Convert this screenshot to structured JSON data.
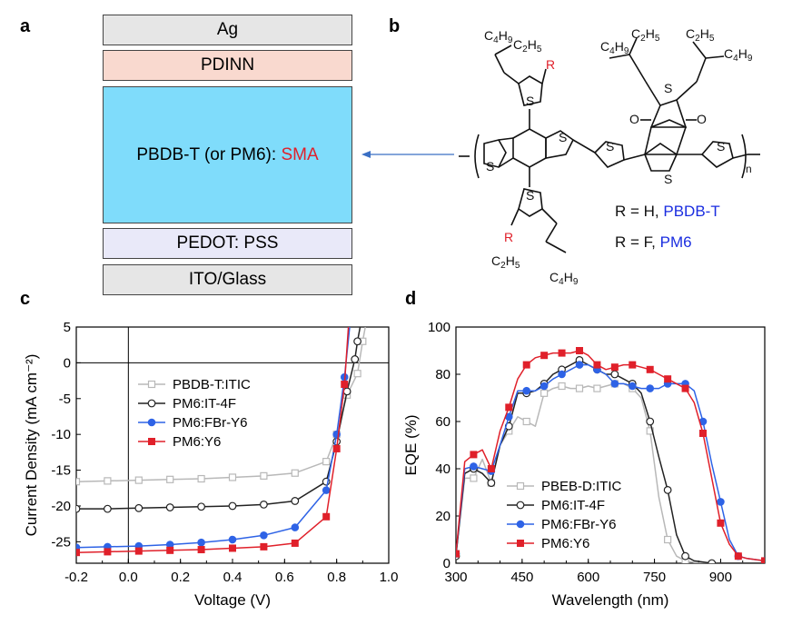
{
  "panels": {
    "a": "a",
    "b": "b",
    "c": "c",
    "d": "d"
  },
  "stack": {
    "layers": [
      {
        "label": "Ag",
        "color": "#e6e6e6"
      },
      {
        "label": "PDINN",
        "color": "#f9d9cf"
      },
      {
        "label_main": "PBDB-T (or PM6): ",
        "label_accent": "SMA",
        "color": "#7fdcfb",
        "accent_color": "#e0202a"
      },
      {
        "label": "PEDOT: PSS",
        "color": "#e9e9f9"
      },
      {
        "label": "ITO/Glass",
        "color": "#e6e6e6"
      }
    ]
  },
  "structure": {
    "substituents": {
      "c4h9": [
        "C",
        "4",
        "H",
        "9"
      ],
      "c2h5": [
        "C",
        "2",
        "H",
        "5"
      ]
    },
    "atoms": {
      "S": "S",
      "O": "O",
      "R": "R",
      "n": "n"
    },
    "legend": [
      {
        "prefix": "R = H, ",
        "polymer": "PBDB-T"
      },
      {
        "prefix": "R = F, ",
        "polymer": "PM6"
      }
    ],
    "r_color": "#e0202a",
    "polymer_color": "#1a2de0"
  },
  "chart_data": [
    {
      "panel": "c",
      "type": "line",
      "xlabel": "Voltage (V)",
      "ylabel": "Current Density (mA cm⁻²)",
      "xlim": [
        -0.2,
        1.0
      ],
      "ylim": [
        -28,
        5
      ],
      "xticks": [
        "-0.2",
        "0.0",
        "0.2",
        "0.4",
        "0.6",
        "0.8",
        "1.0"
      ],
      "yticks": [
        "5",
        "0",
        "-5",
        "-10",
        "-15",
        "-20",
        "-25"
      ],
      "legend_position": "center-left",
      "series": [
        {
          "name": "PBDB-T:ITIC",
          "color": "#b8b8b8",
          "marker": "open-square",
          "points": [
            [
              -0.2,
              -16.6
            ],
            [
              -0.08,
              -16.5
            ],
            [
              0.04,
              -16.4
            ],
            [
              0.16,
              -16.3
            ],
            [
              0.28,
              -16.2
            ],
            [
              0.4,
              -16.0
            ],
            [
              0.52,
              -15.8
            ],
            [
              0.64,
              -15.4
            ],
            [
              0.76,
              -13.8
            ],
            [
              0.8,
              -10
            ],
            [
              0.84,
              -4.5
            ],
            [
              0.88,
              -1.5
            ],
            [
              0.9,
              3
            ],
            [
              0.91,
              5
            ]
          ]
        },
        {
          "name": "PM6:IT-4F",
          "color": "#222222",
          "marker": "open-circle",
          "points": [
            [
              -0.2,
              -20.4
            ],
            [
              -0.08,
              -20.4
            ],
            [
              0.04,
              -20.3
            ],
            [
              0.16,
              -20.2
            ],
            [
              0.28,
              -20.1
            ],
            [
              0.4,
              -20.0
            ],
            [
              0.52,
              -19.8
            ],
            [
              0.64,
              -19.3
            ],
            [
              0.76,
              -16.6
            ],
            [
              0.8,
              -11
            ],
            [
              0.84,
              -4
            ],
            [
              0.87,
              0.5
            ],
            [
              0.88,
              3
            ],
            [
              0.89,
              5
            ]
          ]
        },
        {
          "name": "PM6:FBr-Y6",
          "color": "#2e63e6",
          "marker": "filled-circle",
          "points": [
            [
              -0.2,
              -25.8
            ],
            [
              -0.08,
              -25.7
            ],
            [
              0.04,
              -25.6
            ],
            [
              0.16,
              -25.4
            ],
            [
              0.28,
              -25.1
            ],
            [
              0.4,
              -24.7
            ],
            [
              0.52,
              -24.1
            ],
            [
              0.64,
              -23.0
            ],
            [
              0.76,
              -17.8
            ],
            [
              0.8,
              -10
            ],
            [
              0.83,
              -2
            ],
            [
              0.85,
              5
            ]
          ]
        },
        {
          "name": "PM6:Y6",
          "color": "#e0202a",
          "marker": "filled-square",
          "points": [
            [
              -0.2,
              -26.5
            ],
            [
              -0.08,
              -26.4
            ],
            [
              0.04,
              -26.3
            ],
            [
              0.16,
              -26.2
            ],
            [
              0.28,
              -26.1
            ],
            [
              0.4,
              -25.9
            ],
            [
              0.52,
              -25.7
            ],
            [
              0.64,
              -25.2
            ],
            [
              0.76,
              -21.5
            ],
            [
              0.8,
              -12
            ],
            [
              0.83,
              -3
            ],
            [
              0.845,
              5
            ]
          ]
        }
      ]
    },
    {
      "panel": "d",
      "type": "line",
      "xlabel": "Wavelength (nm)",
      "ylabel": "EQE (%)",
      "xlim": [
        300,
        1000
      ],
      "ylim": [
        0,
        100
      ],
      "xticks": [
        "300",
        "450",
        "600",
        "750",
        "900"
      ],
      "yticks": [
        "0",
        "20",
        "40",
        "60",
        "80",
        "100"
      ],
      "legend_position": "bottom-left",
      "series": [
        {
          "name": "PBEB-D:ITIC",
          "color": "#b8b8b8",
          "marker": "open-square",
          "points": [
            [
              300,
              4
            ],
            [
              320,
              36
            ],
            [
              340,
              36
            ],
            [
              360,
              44
            ],
            [
              380,
              34
            ],
            [
              400,
              50
            ],
            [
              420,
              56
            ],
            [
              440,
              62
            ],
            [
              460,
              60
            ],
            [
              480,
              58
            ],
            [
              500,
              72
            ],
            [
              520,
              74
            ],
            [
              540,
              75
            ],
            [
              560,
              74
            ],
            [
              580,
              74
            ],
            [
              600,
              75
            ],
            [
              620,
              74
            ],
            [
              640,
              75
            ],
            [
              660,
              76
            ],
            [
              680,
              76
            ],
            [
              700,
              74
            ],
            [
              720,
              70
            ],
            [
              740,
              56
            ],
            [
              760,
              28
            ],
            [
              780,
              10
            ],
            [
              800,
              3
            ],
            [
              820,
              1
            ],
            [
              850,
              0
            ],
            [
              1000,
              0
            ]
          ]
        },
        {
          "name": "PM6:IT-4F",
          "color": "#222222",
          "marker": "open-circle",
          "points": [
            [
              300,
              3
            ],
            [
              320,
              38
            ],
            [
              340,
              40
            ],
            [
              360,
              38
            ],
            [
              380,
              34
            ],
            [
              400,
              50
            ],
            [
              420,
              58
            ],
            [
              440,
              72
            ],
            [
              460,
              72
            ],
            [
              480,
              73
            ],
            [
              500,
              76
            ],
            [
              520,
              80
            ],
            [
              540,
              82
            ],
            [
              560,
              84
            ],
            [
              580,
              86
            ],
            [
              600,
              84
            ],
            [
              620,
              82
            ],
            [
              640,
              80
            ],
            [
              660,
              80
            ],
            [
              680,
              78
            ],
            [
              700,
              76
            ],
            [
              720,
              72
            ],
            [
              740,
              60
            ],
            [
              760,
              45
            ],
            [
              780,
              31
            ],
            [
              800,
              12
            ],
            [
              820,
              3
            ],
            [
              840,
              1
            ],
            [
              880,
              0
            ],
            [
              1000,
              0
            ]
          ]
        },
        {
          "name": "PM6:FBr-Y6",
          "color": "#2e63e6",
          "marker": "filled-circle",
          "points": [
            [
              300,
              4
            ],
            [
              320,
              40
            ],
            [
              340,
              41
            ],
            [
              360,
              40
            ],
            [
              380,
              39
            ],
            [
              400,
              50
            ],
            [
              420,
              62
            ],
            [
              440,
              73
            ],
            [
              460,
              73
            ],
            [
              480,
              73
            ],
            [
              500,
              75
            ],
            [
              520,
              78
            ],
            [
              540,
              80
            ],
            [
              560,
              82
            ],
            [
              580,
              84
            ],
            [
              600,
              84
            ],
            [
              620,
              82
            ],
            [
              640,
              80
            ],
            [
              660,
              76
            ],
            [
              680,
              76
            ],
            [
              700,
              75
            ],
            [
              720,
              74
            ],
            [
              740,
              74
            ],
            [
              760,
              74
            ],
            [
              780,
              76
            ],
            [
              800,
              76
            ],
            [
              820,
              76
            ],
            [
              840,
              73
            ],
            [
              860,
              60
            ],
            [
              880,
              42
            ],
            [
              900,
              26
            ],
            [
              920,
              10
            ],
            [
              940,
              3
            ],
            [
              960,
              2
            ],
            [
              1000,
              1
            ]
          ]
        },
        {
          "name": "PM6:Y6",
          "color": "#e0202a",
          "marker": "filled-square",
          "points": [
            [
              300,
              4
            ],
            [
              320,
              43
            ],
            [
              340,
              46
            ],
            [
              360,
              48
            ],
            [
              380,
              40
            ],
            [
              400,
              56
            ],
            [
              420,
              66
            ],
            [
              440,
              78
            ],
            [
              460,
              84
            ],
            [
              480,
              87
            ],
            [
              500,
              88
            ],
            [
              520,
              89
            ],
            [
              540,
              89
            ],
            [
              560,
              89
            ],
            [
              580,
              90
            ],
            [
              600,
              88
            ],
            [
              620,
              84
            ],
            [
              640,
              82
            ],
            [
              660,
              83
            ],
            [
              680,
              84
            ],
            [
              700,
              84
            ],
            [
              720,
              83
            ],
            [
              740,
              82
            ],
            [
              760,
              80
            ],
            [
              780,
              78
            ],
            [
              800,
              76
            ],
            [
              820,
              74
            ],
            [
              840,
              68
            ],
            [
              860,
              55
            ],
            [
              880,
              36
            ],
            [
              900,
              17
            ],
            [
              920,
              8
            ],
            [
              940,
              3
            ],
            [
              960,
              2
            ],
            [
              1000,
              1
            ]
          ]
        }
      ]
    }
  ]
}
